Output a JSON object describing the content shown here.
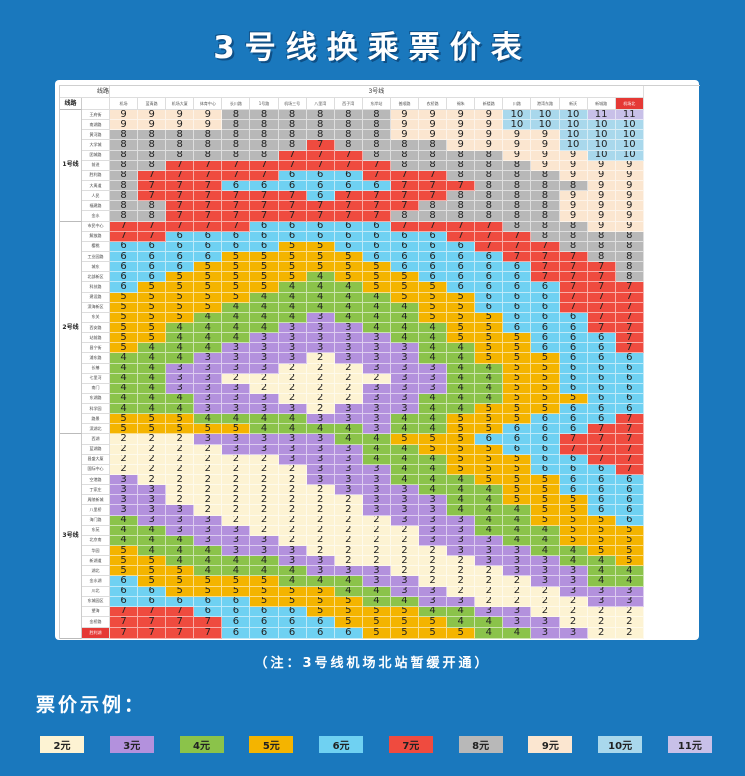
{
  "title": "3号线换乘票价表",
  "note": "（注：3号线机场北站暂缓开通）",
  "legend_title": "票价示例：",
  "table": {
    "header_route": "线路",
    "header_line": "3号线",
    "corner": "线路",
    "line_labels": [
      "1号线",
      "2号线",
      "3号线"
    ],
    "columns": [
      "机场",
      "蓝青路",
      "机场大厦",
      "体育中心",
      "长川路",
      "1号路",
      "机场三号",
      "八里湾",
      "西子湾",
      "东岸站",
      "普顺路",
      "农桥路",
      "锡朱",
      "新楼路",
      "川路",
      "港湾东路",
      "新沃",
      "新城路",
      "机场北"
    ],
    "rows1": [
      "王府街",
      "南湖路",
      "黄河路",
      "大学城",
      "团城路",
      "前进",
      "胜利路",
      "大禹道",
      "人民",
      "福建路",
      "金水"
    ],
    "rows2": [
      "市民中心",
      "解放路",
      "樱桃",
      "工业园路",
      "城东",
      "北部新区",
      "科技路",
      "建设路",
      "滨海新区",
      "东关",
      "西安路",
      "站前路",
      "昌宁街",
      "浦东路",
      "长椿",
      "七里河",
      "南门",
      "东湖路",
      "科学园",
      "路景",
      "滨湖北"
    ],
    "rows3": [
      "西湖",
      "蓝湖路",
      "昌盛大厦",
      "国际中心",
      "空港路",
      "丁家庄",
      "周陵新城",
      "八里桥",
      "海门路",
      "东苑",
      "北京南",
      "华园",
      "新湖道",
      "湖北",
      "金水湖",
      "川北",
      "东城园区",
      "望海",
      "金桥路",
      "胜利湖"
    ],
    "matrix": [
      [
        9,
        9,
        9,
        9,
        8,
        8,
        8,
        8,
        8,
        8,
        9,
        9,
        9,
        9,
        10,
        10,
        10,
        11,
        11
      ],
      [
        9,
        9,
        9,
        9,
        8,
        8,
        8,
        8,
        8,
        8,
        9,
        9,
        9,
        9,
        10,
        10,
        10,
        10,
        10
      ],
      [
        8,
        8,
        8,
        8,
        8,
        8,
        8,
        8,
        8,
        8,
        9,
        9,
        9,
        9,
        9,
        9,
        10,
        10,
        10
      ],
      [
        8,
        8,
        8,
        8,
        8,
        8,
        8,
        7,
        8,
        8,
        8,
        8,
        9,
        9,
        9,
        9,
        10,
        10,
        10
      ],
      [
        8,
        8,
        8,
        8,
        8,
        8,
        7,
        7,
        7,
        8,
        8,
        8,
        8,
        8,
        9,
        9,
        9,
        10,
        10
      ],
      [
        8,
        8,
        7,
        7,
        7,
        7,
        7,
        7,
        7,
        7,
        8,
        8,
        8,
        8,
        8,
        9,
        9,
        9,
        9
      ],
      [
        8,
        7,
        7,
        7,
        7,
        7,
        6,
        6,
        6,
        7,
        7,
        7,
        8,
        8,
        8,
        8,
        9,
        9,
        9
      ],
      [
        8,
        7,
        7,
        7,
        6,
        6,
        6,
        6,
        6,
        6,
        7,
        7,
        7,
        8,
        8,
        8,
        8,
        9,
        9
      ],
      [
        8,
        7,
        7,
        7,
        7,
        7,
        7,
        6,
        7,
        7,
        7,
        7,
        8,
        8,
        8,
        8,
        9,
        9,
        9
      ],
      [
        8,
        8,
        7,
        7,
        7,
        7,
        7,
        7,
        7,
        7,
        7,
        8,
        8,
        8,
        8,
        8,
        9,
        9,
        9
      ],
      [
        8,
        8,
        7,
        7,
        7,
        7,
        7,
        7,
        7,
        7,
        8,
        8,
        8,
        8,
        8,
        8,
        9,
        9,
        9
      ],
      [
        7,
        7,
        7,
        7,
        7,
        6,
        6,
        6,
        6,
        6,
        7,
        7,
        7,
        7,
        8,
        8,
        8,
        9,
        9
      ],
      [
        7,
        7,
        6,
        6,
        6,
        6,
        6,
        6,
        6,
        6,
        6,
        6,
        7,
        7,
        7,
        8,
        8,
        8,
        8
      ],
      [
        6,
        6,
        6,
        6,
        6,
        6,
        5,
        5,
        6,
        6,
        6,
        6,
        6,
        7,
        7,
        7,
        8,
        8,
        8
      ],
      [
        6,
        6,
        6,
        6,
        5,
        5,
        5,
        5,
        5,
        6,
        6,
        6,
        6,
        6,
        7,
        7,
        7,
        8,
        8
      ],
      [
        6,
        6,
        6,
        5,
        5,
        5,
        5,
        5,
        5,
        5,
        6,
        6,
        6,
        6,
        6,
        7,
        7,
        7,
        8
      ],
      [
        6,
        6,
        5,
        5,
        5,
        5,
        5,
        4,
        5,
        5,
        5,
        6,
        6,
        6,
        6,
        7,
        7,
        7,
        8
      ],
      [
        6,
        5,
        5,
        5,
        5,
        5,
        4,
        4,
        4,
        5,
        5,
        5,
        6,
        6,
        6,
        6,
        7,
        7,
        7
      ],
      [
        5,
        5,
        5,
        5,
        5,
        4,
        4,
        4,
        4,
        4,
        5,
        5,
        5,
        6,
        6,
        6,
        7,
        7,
        7
      ],
      [
        5,
        5,
        5,
        5,
        4,
        4,
        4,
        4,
        4,
        4,
        4,
        5,
        5,
        6,
        6,
        6,
        7,
        7,
        7
      ],
      [
        5,
        5,
        5,
        4,
        4,
        4,
        4,
        3,
        4,
        4,
        4,
        5,
        5,
        5,
        6,
        6,
        6,
        7,
        7
      ],
      [
        5,
        5,
        4,
        4,
        4,
        4,
        3,
        3,
        3,
        4,
        4,
        4,
        5,
        5,
        6,
        6,
        6,
        7,
        7
      ],
      [
        5,
        5,
        4,
        4,
        4,
        3,
        3,
        3,
        3,
        3,
        4,
        4,
        5,
        5,
        5,
        6,
        6,
        6,
        7
      ],
      [
        5,
        4,
        4,
        4,
        3,
        3,
        3,
        3,
        3,
        3,
        3,
        4,
        4,
        5,
        5,
        6,
        6,
        6,
        7
      ],
      [
        4,
        4,
        4,
        3,
        3,
        3,
        3,
        2,
        3,
        3,
        3,
        4,
        4,
        5,
        5,
        5,
        6,
        6,
        6
      ],
      [
        4,
        4,
        3,
        3,
        3,
        3,
        2,
        2,
        2,
        3,
        3,
        3,
        4,
        4,
        5,
        5,
        6,
        6,
        6
      ],
      [
        4,
        4,
        3,
        3,
        2,
        2,
        2,
        2,
        2,
        2,
        3,
        3,
        4,
        4,
        5,
        5,
        6,
        6,
        6
      ],
      [
        4,
        4,
        3,
        3,
        3,
        2,
        2,
        2,
        2,
        3,
        3,
        3,
        4,
        4,
        5,
        5,
        6,
        6,
        6
      ],
      [
        4,
        4,
        4,
        3,
        3,
        3,
        2,
        2,
        2,
        3,
        3,
        4,
        4,
        4,
        5,
        5,
        5,
        6,
        6
      ],
      [
        4,
        4,
        4,
        3,
        3,
        3,
        3,
        2,
        3,
        3,
        3,
        4,
        4,
        5,
        5,
        5,
        6,
        6,
        6
      ],
      [
        5,
        5,
        5,
        4,
        4,
        4,
        4,
        3,
        3,
        3,
        4,
        4,
        5,
        5,
        5,
        6,
        6,
        6,
        7
      ],
      [
        5,
        5,
        5,
        5,
        5,
        4,
        4,
        4,
        4,
        3,
        4,
        4,
        5,
        5,
        6,
        6,
        6,
        7,
        7
      ],
      [
        2,
        2,
        2,
        3,
        3,
        3,
        3,
        3,
        4,
        4,
        5,
        5,
        5,
        6,
        6,
        6,
        7,
        7,
        7
      ],
      [
        2,
        2,
        2,
        2,
        3,
        3,
        3,
        3,
        3,
        4,
        4,
        5,
        5,
        5,
        6,
        6,
        7,
        7,
        7
      ],
      [
        2,
        2,
        2,
        2,
        2,
        2,
        3,
        3,
        3,
        4,
        4,
        4,
        5,
        5,
        5,
        6,
        6,
        7,
        7
      ],
      [
        2,
        2,
        2,
        2,
        2,
        2,
        2,
        3,
        3,
        3,
        4,
        4,
        5,
        5,
        5,
        6,
        6,
        6,
        7
      ],
      [
        3,
        2,
        2,
        2,
        2,
        2,
        2,
        3,
        3,
        3,
        4,
        4,
        4,
        5,
        5,
        5,
        6,
        6,
        6
      ],
      [
        3,
        3,
        2,
        2,
        2,
        2,
        2,
        2,
        3,
        3,
        3,
        4,
        4,
        4,
        5,
        5,
        6,
        6,
        6
      ],
      [
        3,
        3,
        2,
        2,
        2,
        2,
        2,
        2,
        2,
        3,
        3,
        3,
        4,
        4,
        5,
        5,
        5,
        6,
        6
      ],
      [
        3,
        3,
        3,
        2,
        2,
        2,
        2,
        2,
        2,
        3,
        3,
        3,
        4,
        4,
        4,
        5,
        5,
        6,
        6
      ],
      [
        4,
        3,
        3,
        3,
        2,
        2,
        2,
        2,
        2,
        2,
        3,
        3,
        3,
        4,
        4,
        5,
        5,
        5,
        6
      ],
      [
        4,
        4,
        3,
        3,
        3,
        2,
        2,
        2,
        2,
        2,
        2,
        3,
        3,
        4,
        4,
        4,
        5,
        5,
        5
      ],
      [
        4,
        4,
        4,
        3,
        3,
        3,
        2,
        2,
        2,
        2,
        2,
        3,
        3,
        3,
        4,
        4,
        5,
        5,
        5
      ],
      [
        5,
        4,
        4,
        4,
        3,
        3,
        3,
        2,
        2,
        2,
        2,
        2,
        3,
        3,
        3,
        4,
        4,
        5,
        5
      ],
      [
        5,
        5,
        4,
        4,
        4,
        4,
        3,
        3,
        2,
        2,
        2,
        2,
        2,
        3,
        3,
        3,
        4,
        4,
        5
      ],
      [
        5,
        5,
        5,
        4,
        4,
        4,
        4,
        3,
        3,
        3,
        2,
        2,
        2,
        2,
        3,
        3,
        3,
        4,
        4
      ],
      [
        6,
        5,
        5,
        5,
        5,
        5,
        4,
        4,
        4,
        3,
        3,
        2,
        2,
        2,
        2,
        3,
        3,
        4,
        4
      ],
      [
        6,
        6,
        5,
        5,
        5,
        5,
        5,
        5,
        4,
        4,
        3,
        3,
        2,
        2,
        2,
        2,
        3,
        3,
        3
      ],
      [
        6,
        6,
        6,
        6,
        6,
        5,
        5,
        5,
        5,
        4,
        4,
        3,
        3,
        2,
        2,
        2,
        2,
        3,
        3
      ],
      [
        7,
        7,
        7,
        6,
        6,
        6,
        6,
        5,
        5,
        5,
        5,
        4,
        4,
        3,
        3,
        2,
        2,
        2,
        2
      ],
      [
        7,
        7,
        7,
        7,
        6,
        6,
        6,
        6,
        5,
        5,
        5,
        5,
        4,
        4,
        3,
        3,
        2,
        2,
        2
      ],
      [
        7,
        7,
        7,
        7,
        6,
        6,
        6,
        6,
        6,
        5,
        5,
        5,
        5,
        4,
        4,
        3,
        3,
        2,
        2
      ]
    ]
  },
  "fare_colors": {
    "2": "#fdf3d3",
    "3": "#b391dd",
    "4": "#8bc34a",
    "5": "#f4b400",
    "6": "#6fd1f2",
    "7": "#ef4b3f",
    "8": "#b8b8b8",
    "9": "#fbe6d0",
    "10": "#a9d8ec",
    "11": "#c8c0e8"
  },
  "legend": [
    {
      "label": "2元",
      "color": "#fdf3d3"
    },
    {
      "label": "3元",
      "color": "#b391dd"
    },
    {
      "label": "4元",
      "color": "#8bc34a"
    },
    {
      "label": "5元",
      "color": "#f4b400"
    },
    {
      "label": "6元",
      "color": "#6fd1f2"
    },
    {
      "label": "7元",
      "color": "#ef4b3f"
    },
    {
      "label": "8元",
      "color": "#b8b8b8"
    },
    {
      "label": "9元",
      "color": "#fbe6d0"
    },
    {
      "label": "10元",
      "color": "#a9d8ec"
    },
    {
      "label": "11元",
      "color": "#c8c0e8"
    }
  ]
}
